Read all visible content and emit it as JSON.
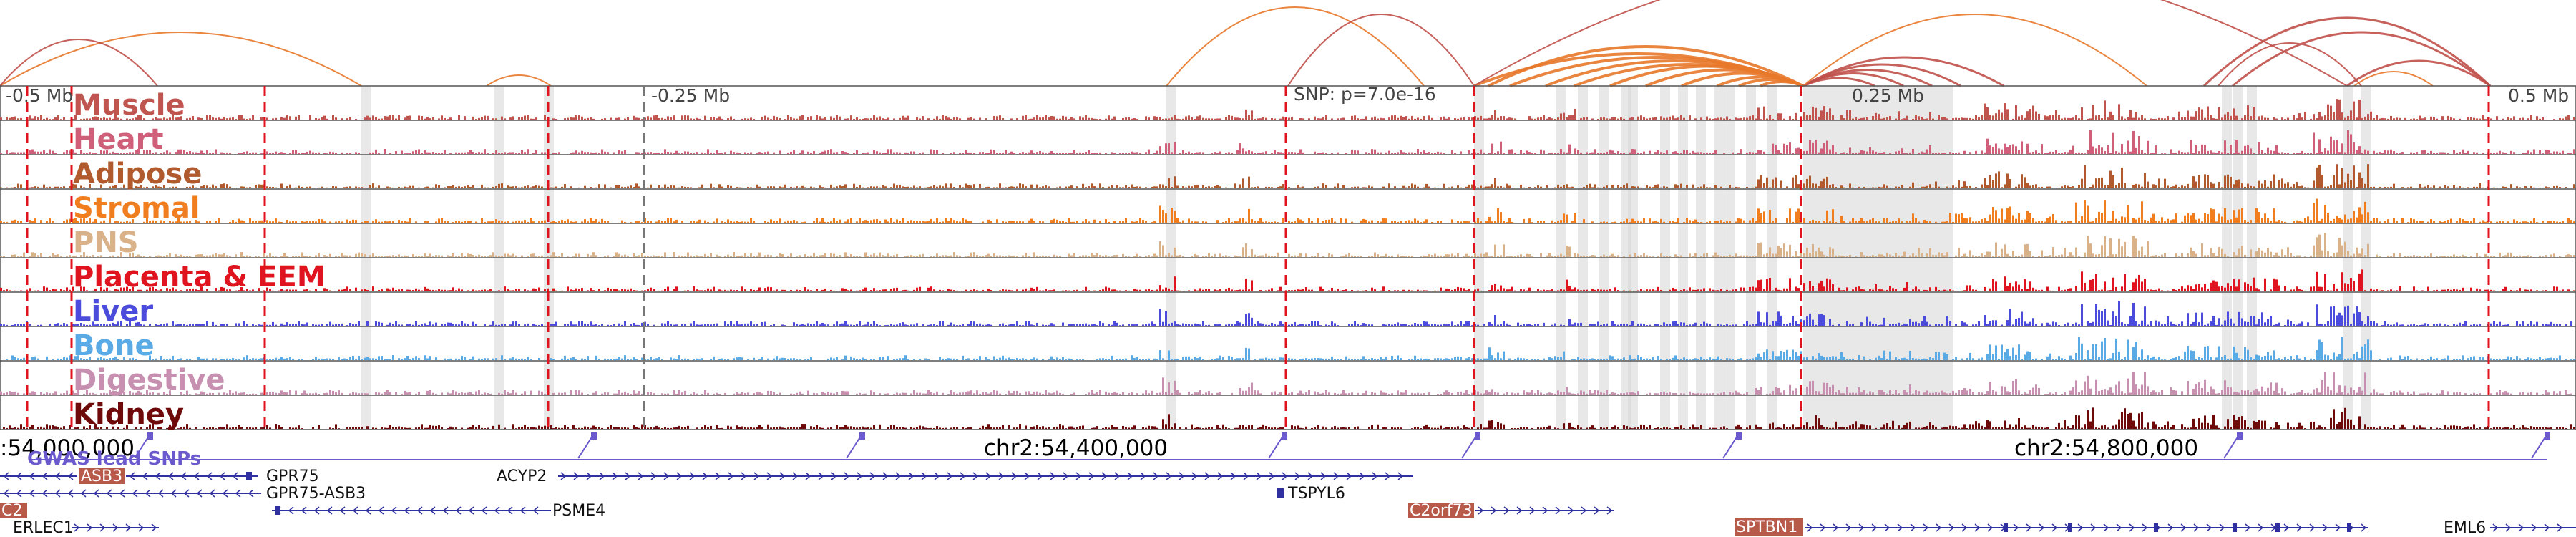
{
  "ruler": {
    "left_label": "-0.5 Mb",
    "mid_left_label": "-0.25 Mb",
    "snp_label": "SNP: p=7.0e-16",
    "mid_right_label": "0.25 Mb",
    "right_label": "0.5 Mb"
  },
  "tracks": [
    {
      "name": "Muscle",
      "color": "#c0544f"
    },
    {
      "name": "Heart",
      "color": "#d0607a"
    },
    {
      "name": "Adipose",
      "color": "#b05a2e"
    },
    {
      "name": "Stromal",
      "color": "#f07d1e"
    },
    {
      "name": "PNS",
      "color": "#d9b28a"
    },
    {
      "name": "Placenta & EEM",
      "color": "#e0141e"
    },
    {
      "name": "Liver",
      "color": "#4b4bdc"
    },
    {
      "name": "Bone",
      "color": "#5aaae6"
    },
    {
      "name": "Digestive",
      "color": "#c890b0"
    },
    {
      "name": "Kidney",
      "color": "#6e0a0a"
    }
  ],
  "coordinates": {
    "left": ":54,000,000",
    "center": "chr2:54,400,000",
    "right": "chr2:54,800,000"
  },
  "gwas": {
    "label": "GWAS lead SNPs",
    "color": "#6a5acd"
  },
  "genes": [
    {
      "name": "ASB3",
      "boxed": true
    },
    {
      "name": "GPR75",
      "boxed": false
    },
    {
      "name": "GPR75-ASB3",
      "boxed": false
    },
    {
      "name": "ACYP2",
      "boxed": false
    },
    {
      "name": "TSPYL6",
      "boxed": false
    },
    {
      "name": "C2",
      "boxed": true
    },
    {
      "name": "PSME4",
      "boxed": false
    },
    {
      "name": "C2orf73",
      "boxed": true
    },
    {
      "name": "ERLEC1",
      "boxed": false
    },
    {
      "name": "SPTBN1",
      "boxed": true
    },
    {
      "name": "EML6",
      "boxed": false
    }
  ],
  "colors": {
    "arc_orange": "#e8782a",
    "arc_red": "#c0504a",
    "highlight_red": "#e0141e",
    "gene_blue": "#3030a0",
    "gene_box": "#b85a4a"
  }
}
